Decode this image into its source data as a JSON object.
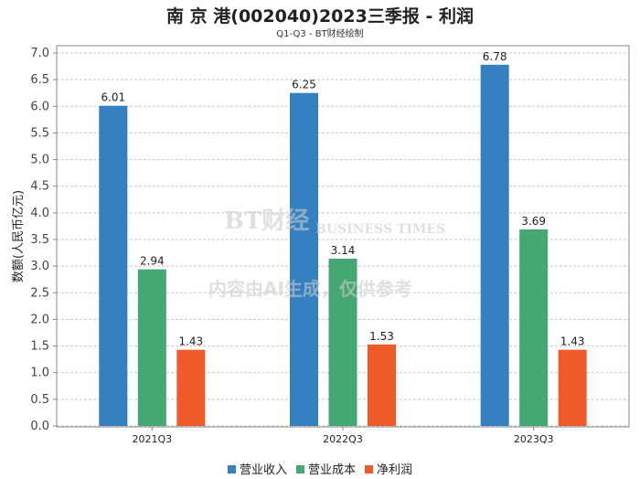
{
  "chart_data": {
    "type": "bar",
    "title": "南 京 港(002040)2023三季报 - 利润",
    "subtitle": "Q1-Q3 - BT财经绘制",
    "categories": [
      "2021Q3",
      "2022Q3",
      "2023Q3"
    ],
    "series": [
      {
        "name": "营业收入",
        "color": "#3480c0",
        "values": [
          6.01,
          6.25,
          6.78
        ]
      },
      {
        "name": "营业成本",
        "color": "#45a872",
        "values": [
          2.94,
          3.14,
          3.69
        ]
      },
      {
        "name": "净利润",
        "color": "#f05a28",
        "values": [
          1.43,
          1.53,
          1.43
        ]
      }
    ],
    "xlabel": "",
    "ylabel": "数额(人民币亿元)",
    "ylim": [
      0,
      7.0
    ],
    "yticks": [
      "0.0",
      "0.5",
      "1.0",
      "1.5",
      "2.0",
      "2.5",
      "3.0",
      "3.5",
      "4.0",
      "4.5",
      "5.0",
      "5.5",
      "6.0",
      "6.5",
      "7.0"
    ],
    "grid": true,
    "legend": "bottom"
  },
  "watermark": {
    "brand": "BT财经",
    "brand_en": "BUSINESS TIMES",
    "notice": "内容由AI生成，仅供参考"
  }
}
